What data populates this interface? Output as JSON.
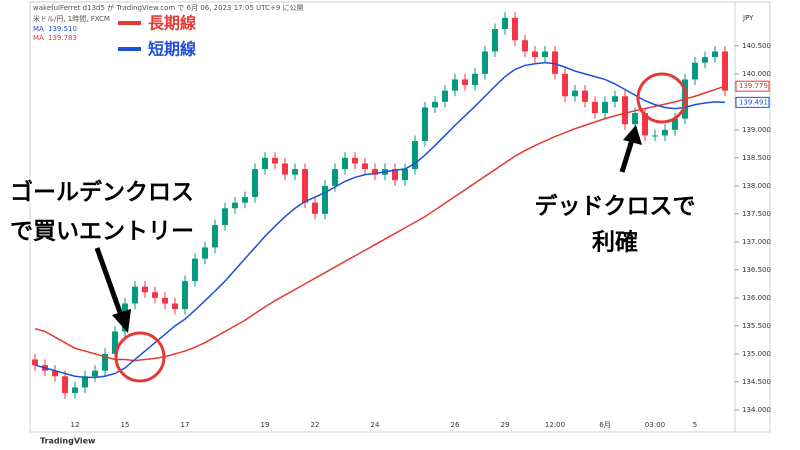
{
  "header": {
    "published": "wakefulFerret d13d5 が TradingView.com で 6月 06, 2023 17:05 UTC+9 に公開",
    "symbol": "米ドル/円, 1時間, FXCM",
    "currency": "JPY",
    "footer": "TradingView"
  },
  "chart_data": {
    "type": "candlestick",
    "categories": [
      null,
      null,
      null,
      null,
      "12",
      null,
      null,
      null,
      null,
      "15",
      null,
      null,
      null,
      null,
      null,
      "17",
      null,
      null,
      null,
      null,
      null,
      null,
      null,
      "19",
      null,
      null,
      null,
      null,
      "22",
      null,
      null,
      null,
      null,
      null,
      "24",
      null,
      null,
      null,
      null,
      null,
      null,
      null,
      "26",
      null,
      null,
      null,
      null,
      "29",
      null,
      null,
      null,
      null,
      "12:00",
      null,
      null,
      null,
      null,
      "6月",
      null,
      null,
      null,
      null,
      "03:00",
      null,
      null,
      null,
      "5",
      null,
      null,
      null
    ],
    "open": [
      134.9,
      134.8,
      134.7,
      134.6,
      134.3,
      134.4,
      134.6,
      134.7,
      135.0,
      135.4,
      135.9,
      136.2,
      136.1,
      136.0,
      135.9,
      135.8,
      136.3,
      136.7,
      136.9,
      137.3,
      137.6,
      137.7,
      137.8,
      138.3,
      138.5,
      138.4,
      138.2,
      138.3,
      137.7,
      137.5,
      138.0,
      138.3,
      138.5,
      138.4,
      138.3,
      138.2,
      138.3,
      138.1,
      138.3,
      138.8,
      139.4,
      139.5,
      139.7,
      139.9,
      139.8,
      140.0,
      140.4,
      140.8,
      141.0,
      140.6,
      140.4,
      140.3,
      140.4,
      140.0,
      139.6,
      139.7,
      139.5,
      139.3,
      139.5,
      139.6,
      139.1,
      139.3,
      138.9,
      138.9,
      139.0,
      139.2,
      139.9,
      140.2,
      140.3,
      140.4
    ],
    "high": [
      135.0,
      134.9,
      134.8,
      134.7,
      134.5,
      134.7,
      134.8,
      135.1,
      135.5,
      136.0,
      136.3,
      136.3,
      136.2,
      136.1,
      136.0,
      136.4,
      136.8,
      137.0,
      137.4,
      137.7,
      137.8,
      137.9,
      138.4,
      138.6,
      138.6,
      138.5,
      138.4,
      138.4,
      137.8,
      138.1,
      138.4,
      138.6,
      138.6,
      138.5,
      138.4,
      138.4,
      138.4,
      138.4,
      138.9,
      139.5,
      139.6,
      139.8,
      140.0,
      140.0,
      140.1,
      140.5,
      140.9,
      141.1,
      141.1,
      140.7,
      140.5,
      140.5,
      140.5,
      140.1,
      139.8,
      139.8,
      139.6,
      139.6,
      139.7,
      139.7,
      139.4,
      139.4,
      139.0,
      139.1,
      139.3,
      140.0,
      140.3,
      140.4,
      140.5,
      140.5
    ],
    "low": [
      134.7,
      134.6,
      134.5,
      134.2,
      134.2,
      134.3,
      134.5,
      134.6,
      134.9,
      135.3,
      135.8,
      136.0,
      135.9,
      135.8,
      135.7,
      135.7,
      136.2,
      136.6,
      136.8,
      137.2,
      137.5,
      137.6,
      137.7,
      138.2,
      138.3,
      138.1,
      138.1,
      137.6,
      137.4,
      137.4,
      137.9,
      138.2,
      138.3,
      138.2,
      138.1,
      138.1,
      138.0,
      138.0,
      138.2,
      138.7,
      139.3,
      139.4,
      139.6,
      139.7,
      139.7,
      139.9,
      140.3,
      140.7,
      140.5,
      140.3,
      140.2,
      140.2,
      139.9,
      139.5,
      139.5,
      139.4,
      139.2,
      139.2,
      139.4,
      139.0,
      139.0,
      138.8,
      138.8,
      138.8,
      138.9,
      139.1,
      139.8,
      140.1,
      140.2,
      139.6
    ],
    "close": [
      134.8,
      134.7,
      134.6,
      134.3,
      134.4,
      134.6,
      134.7,
      135.0,
      135.4,
      135.9,
      136.2,
      136.1,
      136.0,
      135.9,
      135.8,
      136.3,
      136.7,
      136.9,
      137.3,
      137.6,
      137.7,
      137.8,
      138.3,
      138.5,
      138.4,
      138.2,
      138.3,
      137.7,
      137.5,
      138.0,
      138.3,
      138.5,
      138.4,
      138.3,
      138.2,
      138.3,
      138.1,
      138.3,
      138.8,
      139.4,
      139.5,
      139.7,
      139.9,
      139.8,
      140.0,
      140.4,
      140.8,
      141.0,
      140.6,
      140.4,
      140.3,
      140.4,
      140.0,
      139.6,
      139.7,
      139.5,
      139.3,
      139.5,
      139.6,
      139.1,
      139.3,
      138.9,
      138.9,
      139.0,
      139.2,
      139.9,
      140.2,
      140.3,
      140.4,
      139.7
    ],
    "up_color": "#089981",
    "down_color": "#f23645",
    "series": [
      {
        "name": "長期線",
        "color": "#e53935",
        "values": [
          135.45,
          135.4,
          135.3,
          135.2,
          135.1,
          135.05,
          135.0,
          134.95,
          134.9,
          134.9,
          134.88,
          134.9,
          134.92,
          134.95,
          135.0,
          135.05,
          135.12,
          135.2,
          135.3,
          135.4,
          135.5,
          135.6,
          135.72,
          135.84,
          135.95,
          136.05,
          136.15,
          136.25,
          136.35,
          136.45,
          136.55,
          136.65,
          136.75,
          136.85,
          136.95,
          137.05,
          137.15,
          137.25,
          137.35,
          137.45,
          137.57,
          137.69,
          137.81,
          137.93,
          138.05,
          138.17,
          138.29,
          138.41,
          138.53,
          138.63,
          138.72,
          138.8,
          138.88,
          138.95,
          139.02,
          139.08,
          139.14,
          139.2,
          139.25,
          139.3,
          139.34,
          139.38,
          139.42,
          139.46,
          139.5,
          139.55,
          139.6,
          139.66,
          139.72,
          139.779
        ],
        "indicator": "MA",
        "indicator_value": "139.783",
        "last_label": 139.779
      },
      {
        "name": "短期線",
        "color": "#1e4fd8",
        "values": [
          134.8,
          134.75,
          134.7,
          134.65,
          134.6,
          134.58,
          134.58,
          134.6,
          134.65,
          134.75,
          134.9,
          135.05,
          135.2,
          135.35,
          135.5,
          135.62,
          135.78,
          135.95,
          136.12,
          136.3,
          136.5,
          136.7,
          136.9,
          137.1,
          137.28,
          137.45,
          137.6,
          137.72,
          137.8,
          137.88,
          137.98,
          138.08,
          138.15,
          138.2,
          138.22,
          138.25,
          138.28,
          138.3,
          138.4,
          138.55,
          138.72,
          138.9,
          139.08,
          139.25,
          139.42,
          139.6,
          139.78,
          139.95,
          140.08,
          140.15,
          140.18,
          140.2,
          140.18,
          140.12,
          140.05,
          140.0,
          139.95,
          139.9,
          139.82,
          139.72,
          139.62,
          139.52,
          139.45,
          139.4,
          139.38,
          139.4,
          139.45,
          139.48,
          139.5,
          139.491
        ],
        "indicator": "MA",
        "indicator_value": "139.510",
        "last_label": 139.491
      }
    ],
    "ylim": [
      133.73,
      141.14
    ],
    "yticks": [
      {
        "value": 134,
        "label": "134.000"
      },
      {
        "value": 134.5,
        "label": "134.500"
      },
      {
        "value": 135,
        "label": "135.000"
      },
      {
        "value": 135.5,
        "label": "135.500"
      },
      {
        "value": 136,
        "label": "136.000"
      },
      {
        "value": 136.5,
        "label": "136.500"
      },
      {
        "value": 137,
        "label": "137.000"
      },
      {
        "value": 137.5,
        "label": "137.500"
      },
      {
        "value": 138,
        "label": "138.000"
      },
      {
        "value": 138.5,
        "label": "138.500"
      },
      {
        "value": 139,
        "label": "139.000"
      },
      {
        "value": 140,
        "label": "140.000"
      },
      {
        "value": 140.5,
        "label": "140.500"
      }
    ],
    "annotations": [
      "ゴールデンクロス",
      "で買いエントリー",
      "デッドクロスで",
      "利確"
    ]
  }
}
